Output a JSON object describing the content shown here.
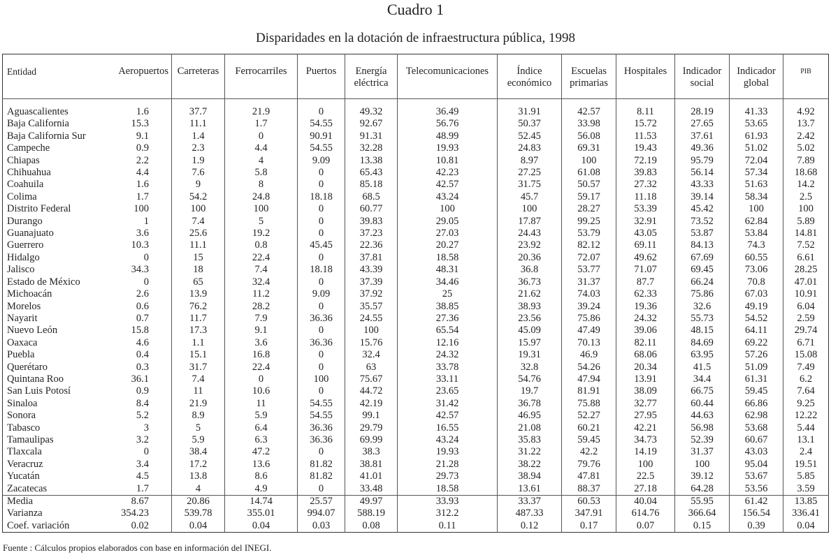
{
  "title": "Cuadro 1",
  "subtitle": "Disparidades en la dotación de infraestructura pública, 1998",
  "table": {
    "columns": [
      "Entidad",
      "Aeropuertos",
      "Carreteras",
      "Ferrocarriles",
      "Puertos",
      "Energía eléctrica",
      "Telecomunicaciones",
      "Índice económico",
      "Escuelas primarias",
      "Hospitales",
      "Indicador social",
      "Indicador global",
      "PIB"
    ],
    "rows": [
      [
        "Aguascalientes",
        "1.6",
        "37.7",
        "21.9",
        "0",
        "49.32",
        "36.49",
        "31.91",
        "42.57",
        "8.11",
        "28.19",
        "41.33",
        "4.92"
      ],
      [
        "Baja California",
        "15.3",
        "11.1",
        "1.7",
        "54.55",
        "92.67",
        "56.76",
        "50.37",
        "33.98",
        "15.72",
        "27.65",
        "53.65",
        "13.7"
      ],
      [
        "Baja California Sur",
        "9.1",
        "1.4",
        "0",
        "90.91",
        "91.31",
        "48.99",
        "52.45",
        "56.08",
        "11.53",
        "37.61",
        "61.93",
        "2.42"
      ],
      [
        "Campeche",
        "0.9",
        "2.3",
        "4.4",
        "54.55",
        "32.28",
        "19.93",
        "24.83",
        "69.31",
        "19.43",
        "49.36",
        "51.02",
        "5.02"
      ],
      [
        "Chiapas",
        "2.2",
        "1.9",
        "4",
        "9.09",
        "13.38",
        "10.81",
        "8.97",
        "100",
        "72.19",
        "95.79",
        "72.04",
        "7.89"
      ],
      [
        "Chihuahua",
        "4.4",
        "7.6",
        "5.8",
        "0",
        "65.43",
        "42.23",
        "27.25",
        "61.08",
        "39.83",
        "56.14",
        "57.34",
        "18.68"
      ],
      [
        "Coahuila",
        "1.6",
        "9",
        "8",
        "0",
        "85.18",
        "42.57",
        "31.75",
        "50.57",
        "27.32",
        "43.33",
        "51.63",
        "14.2"
      ],
      [
        "Colima",
        "1.7",
        "54.2",
        "24.8",
        "18.18",
        "68.5",
        "43.24",
        "45.7",
        "59.17",
        "11.18",
        "39.14",
        "58.34",
        "2.5"
      ],
      [
        "Distrito Federal",
        "100",
        "100",
        "100",
        "0",
        "60.77",
        "100",
        "100",
        "28.27",
        "53.39",
        "45.42",
        "100",
        "100"
      ],
      [
        "Durango",
        "1",
        "7.4",
        "5",
        "0",
        "39.83",
        "29.05",
        "17.87",
        "99.25",
        "32.91",
        "73.52",
        "62.84",
        "5.89"
      ],
      [
        "Guanajuato",
        "3.6",
        "25.6",
        "19.2",
        "0",
        "37.23",
        "27.03",
        "24.43",
        "53.79",
        "43.05",
        "53.87",
        "53.84",
        "14.81"
      ],
      [
        "Guerrero",
        "10.3",
        "11.1",
        "0.8",
        "45.45",
        "22.36",
        "20.27",
        "23.92",
        "82.12",
        "69.11",
        "84.13",
        "74.3",
        "7.52"
      ],
      [
        "Hidalgo",
        "0",
        "15",
        "22.4",
        "0",
        "37.81",
        "18.58",
        "20.36",
        "72.07",
        "49.62",
        "67.69",
        "60.55",
        "6.61"
      ],
      [
        "Jalisco",
        "34.3",
        "18",
        "7.4",
        "18.18",
        "43.39",
        "48.31",
        "36.8",
        "53.77",
        "71.07",
        "69.45",
        "73.06",
        "28.25"
      ],
      [
        "Estado de México",
        "0",
        "65",
        "32.4",
        "0",
        "37.39",
        "34.46",
        "36.73",
        "31.37",
        "87.7",
        "66.24",
        "70.8",
        "47.01"
      ],
      [
        "Michoacán",
        "2.6",
        "13.9",
        "11.2",
        "9.09",
        "37.92",
        "25",
        "21.62",
        "74.03",
        "62.33",
        "75.86",
        "67.03",
        "10.91"
      ],
      [
        "Morelos",
        "0.6",
        "76.2",
        "28.2",
        "0",
        "35.57",
        "38.85",
        "38.93",
        "39.24",
        "19.36",
        "32.6",
        "49.19",
        "6.04"
      ],
      [
        "Nayarit",
        "0.7",
        "11.7",
        "7.9",
        "36.36",
        "24.55",
        "27.36",
        "23.56",
        "75.86",
        "24.32",
        "55.73",
        "54.52",
        "2.59"
      ],
      [
        "Nuevo León",
        "15.8",
        "17.3",
        "9.1",
        "0",
        "100",
        "65.54",
        "45.09",
        "47.49",
        "39.06",
        "48.15",
        "64.11",
        "29.74"
      ],
      [
        "Oaxaca",
        "4.6",
        "1.1",
        "3.6",
        "36.36",
        "15.76",
        "12.16",
        "15.97",
        "70.13",
        "82.11",
        "84.69",
        "69.22",
        "6.71"
      ],
      [
        "Puebla",
        "0.4",
        "15.1",
        "16.8",
        "0",
        "32.4",
        "24.32",
        "19.31",
        "46.9",
        "68.06",
        "63.95",
        "57.26",
        "15.08"
      ],
      [
        "Querétaro",
        "0.3",
        "31.7",
        "22.4",
        "0",
        "63",
        "33.78",
        "32.8",
        "54.26",
        "20.34",
        "41.5",
        "51.09",
        "7.49"
      ],
      [
        "Quintana Roo",
        "36.1",
        "7.4",
        "0",
        "100",
        "75.67",
        "33.11",
        "54.76",
        "47.94",
        "13.91",
        "34.4",
        "61.31",
        "6.2"
      ],
      [
        "San Luis Potosí",
        "0.9",
        "11",
        "10.6",
        "0",
        "44.72",
        "23.65",
        "19.7",
        "81.91",
        "38.09",
        "66.75",
        "59.45",
        "7.64"
      ],
      [
        "Sinaloa",
        "8.4",
        "21.9",
        "11",
        "54.55",
        "42.19",
        "31.42",
        "36.78",
        "75.88",
        "32.77",
        "60.44",
        "66.86",
        "9.25"
      ],
      [
        "Sonora",
        "5.2",
        "8.9",
        "5.9",
        "54.55",
        "99.1",
        "42.57",
        "46.95",
        "52.27",
        "27.95",
        "44.63",
        "62.98",
        "12.22"
      ],
      [
        "Tabasco",
        "3",
        "5",
        "6.4",
        "36.36",
        "29.79",
        "16.55",
        "21.08",
        "60.21",
        "42.21",
        "56.98",
        "53.68",
        "5.44"
      ],
      [
        "Tamaulipas",
        "3.2",
        "5.9",
        "6.3",
        "36.36",
        "69.99",
        "43.24",
        "35.83",
        "59.45",
        "34.73",
        "52.39",
        "60.67",
        "13.1"
      ],
      [
        "Tlaxcala",
        "0",
        "38.4",
        "47.2",
        "0",
        "38.3",
        "19.93",
        "31.22",
        "42.2",
        "14.19",
        "31.37",
        "43.03",
        "2.4"
      ],
      [
        "Veracruz",
        "3.4",
        "17.2",
        "13.6",
        "81.82",
        "38.81",
        "21.28",
        "38.22",
        "79.76",
        "100",
        "100",
        "95.04",
        "19.51"
      ],
      [
        "Yucatán",
        "4.5",
        "13.8",
        "8.6",
        "81.82",
        "41.01",
        "29.73",
        "38.94",
        "47.81",
        "22.5",
        "39.12",
        "53.67",
        "5.85"
      ],
      [
        "Zacatecas",
        "1.7",
        "4",
        "4.9",
        "0",
        "33.48",
        "18.58",
        "13.61",
        "88.37",
        "27.18",
        "64.28",
        "53.56",
        "3.59"
      ]
    ],
    "summary": [
      [
        "Media",
        "8.67",
        "20.86",
        "14.74",
        "25.57",
        "49.97",
        "33.93",
        "33.37",
        "60.53",
        "40.04",
        "55.95",
        "61.42",
        "13.85"
      ],
      [
        "Varianza",
        "354.23",
        "539.78",
        "355.01",
        "994.07",
        "588.19",
        "312.2",
        "487.33",
        "347.91",
        "614.76",
        "366.64",
        "156.54",
        "336.41"
      ],
      [
        "Coef. variación",
        "0.02",
        "0.04",
        "0.04",
        "0.03",
        "0.08",
        "0.11",
        "0.12",
        "0.17",
        "0.07",
        "0.15",
        "0.39",
        "0.04"
      ]
    ]
  },
  "footnote": "Fuente : Cálculos propios elaborados con base en información del INEGI."
}
